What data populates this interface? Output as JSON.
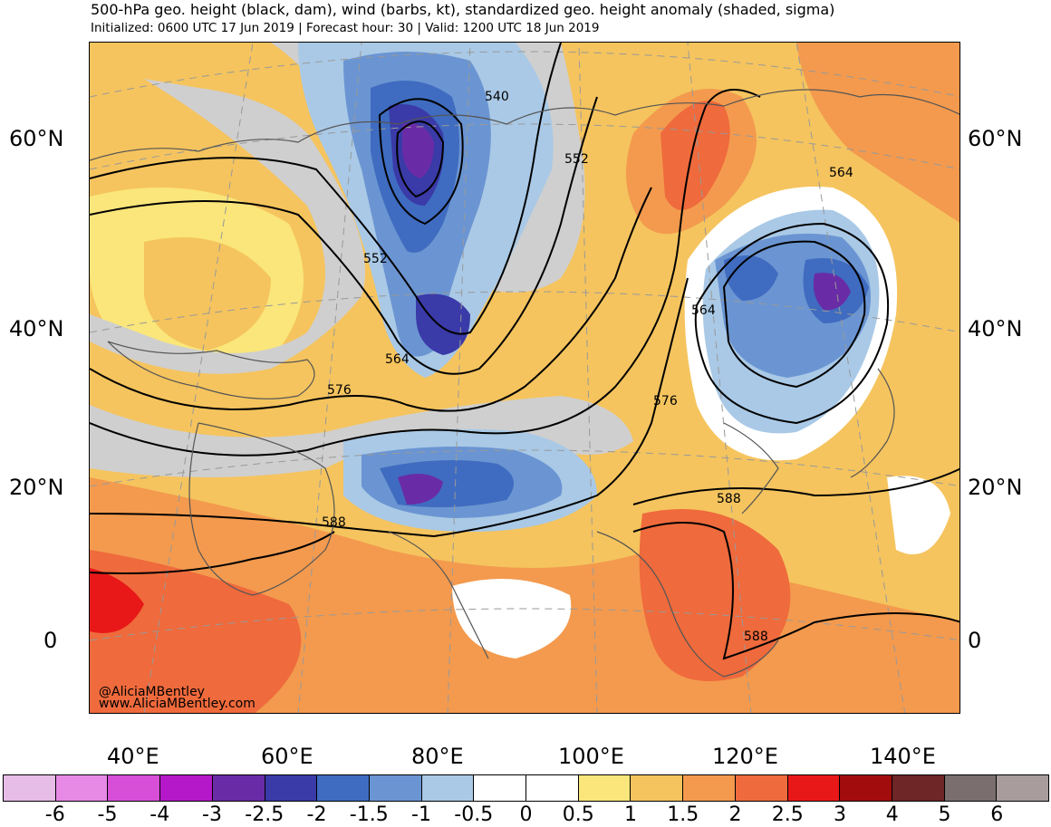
{
  "header": {
    "title": "500-hPa geo. height (black, dam), wind (barbs, kt), standardized geo. height anomaly (shaded, sigma)",
    "subtitle": "Initialized: 0600 UTC 17 Jun 2019 | Forecast hour: 30 | Valid: 1200 UTC 18 Jun 2019"
  },
  "map": {
    "lat_labels": [
      "60°N",
      "40°N",
      "20°N",
      "0"
    ],
    "lon_labels": [
      "40°E",
      "60°E",
      "80°E",
      "100°E",
      "120°E",
      "140°E"
    ],
    "contour_labels": [
      "540",
      "552",
      "552",
      "564",
      "564",
      "564",
      "576",
      "576",
      "588",
      "588",
      "588"
    ],
    "credit_handle": "@AliciaMBentley",
    "credit_url": "www.AliciaMBentley.com"
  },
  "colorbar": {
    "labels": [
      "-6",
      "-5",
      "-4",
      "-3",
      "-2.5",
      "-2",
      "-1.5",
      "-1",
      "-0.5",
      "0",
      "0.5",
      "1",
      "1.5",
      "2",
      "2.5",
      "3",
      "4",
      "5",
      "6"
    ],
    "colors": [
      "#e6bde6",
      "#e68ae6",
      "#d64fd6",
      "#b418c8",
      "#6a2ca6",
      "#3a3aa8",
      "#3f6cc0",
      "#6b95d2",
      "#a9c9e6",
      "#ffffff",
      "#ffffff",
      "#fae67a",
      "#f5c45e",
      "#f39a4e",
      "#ef6a3c",
      "#e81818",
      "#a30c0c",
      "#6e2626",
      "#7a6e6e",
      "#a89c9c"
    ]
  }
}
